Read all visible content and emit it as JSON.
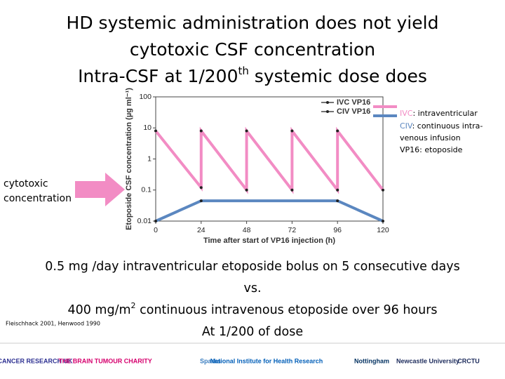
{
  "title": {
    "line1": "HD systemic administration does not yield",
    "line2": "cytotoxic CSF concentration",
    "line3_before": "Intra-CSF at 1/200",
    "line3_sup": "th",
    "line3_after": " systemic dose does"
  },
  "notes": [
    [
      "IVC",
      ": intraventricular"
    ],
    [
      "CIV",
      ": continuous intra-"
    ],
    [
      "venous infusion"
    ],
    [
      "VP16: etoposide"
    ]
  ],
  "left_label": [
    "cytotoxic",
    "concentration"
  ],
  "body": {
    "line1": "0.5 mg /day intraventricular etoposide bolus  on 5 consecutive days",
    "line2": "vs.",
    "line3_before": "400 mg/m",
    "line3_sup": "2",
    "line3_after": " continuous intravenous etoposide over 96 hours",
    "line4": "At 1/200 of dose"
  },
  "citation": "Fleischhack 2001, Henwood 1990",
  "logos": [
    "CANCER RESEARCH UK",
    "THE BRAIN TUMOUR CHARITY",
    "Sparks",
    "National Institute for Health Research",
    "Nottingham",
    "Newcastle University",
    "CRCTU"
  ],
  "chart_data": {
    "type": "line",
    "x_label": "Time after start of VP16 injection (h)",
    "y_label": "Etoposide CSF concentration (µg ml⁻¹)",
    "xlim": [
      0,
      120
    ],
    "xticks": [
      0,
      24,
      48,
      72,
      96,
      120
    ],
    "ylim": [
      0.01,
      100
    ],
    "yticks": [
      0.01,
      0.1,
      1,
      10,
      100
    ],
    "log_y": true,
    "legend": "top-right",
    "series": [
      {
        "name": "IVC VP16",
        "color": "#f28cc4",
        "x": [
          0,
          24,
          24,
          48,
          48,
          72,
          72,
          96,
          96,
          120
        ],
        "values": [
          8,
          0.12,
          8,
          0.1,
          8,
          0.1,
          8,
          0.1,
          8,
          0.1
        ]
      },
      {
        "name": "CIV VP16",
        "color": "#5b87c0",
        "x": [
          0,
          24,
          96,
          120
        ],
        "values": [
          0.01,
          0.045,
          0.045,
          0.01
        ]
      }
    ]
  }
}
